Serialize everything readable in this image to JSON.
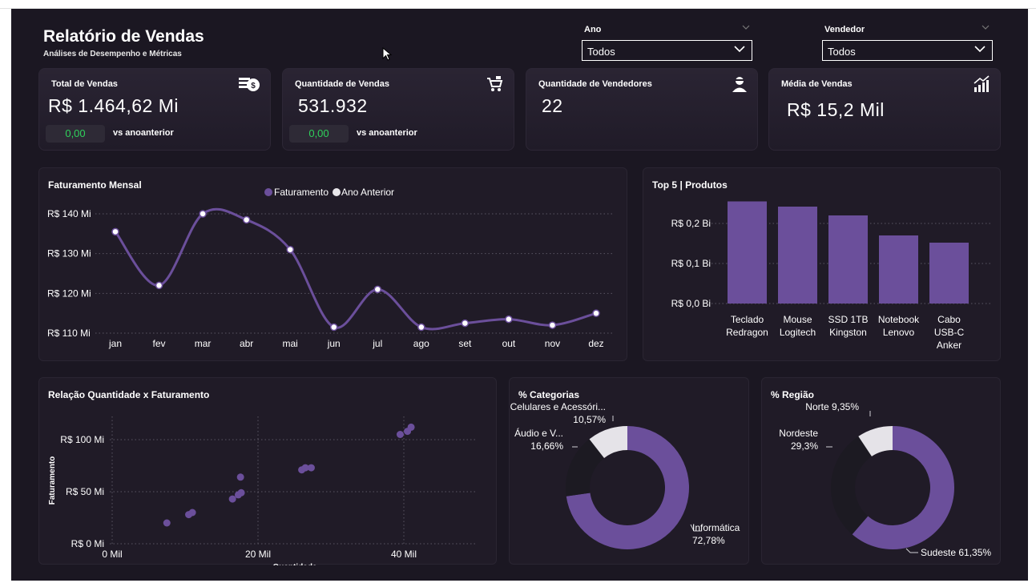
{
  "header": {
    "title": "Relatório de Vendas",
    "subtitle": "Análises de Desempenho e Métricas"
  },
  "filters": {
    "ano": {
      "label": "Ano",
      "value": "Todos"
    },
    "vendedor": {
      "label": "Vendedor",
      "value": "Todos"
    }
  },
  "kpis": [
    {
      "label": "Total de Vendas",
      "value": "R$ 1.464,62 Mi",
      "badge": "0,00",
      "vs": "vs anoanterior",
      "icon": "money-icon"
    },
    {
      "label": "Quantidade de Vendas",
      "value": "531.932",
      "badge": "0,00",
      "vs": "vs anoanterior",
      "icon": "cart-icon"
    },
    {
      "label": "Quantidade de Vendedores",
      "value": "22",
      "icon": "person-icon"
    },
    {
      "label": "Média de Vendas",
      "value": "R$ 15,2 Mil",
      "icon": "growth-chart-icon"
    }
  ],
  "colors": {
    "accent": "#6b4f9b",
    "background": "#1b1722",
    "panel": "#201b27",
    "positive": "#2fd15b",
    "light": "#e8e6ea"
  },
  "chart_data": [
    {
      "id": "faturamento-mensal",
      "type": "line",
      "title": "Faturamento  Mensal",
      "legend": [
        "Faturamento",
        "Ano Anterior"
      ],
      "categories": [
        "jan",
        "fev",
        "mar",
        "abr",
        "mai",
        "jun",
        "jul",
        "ago",
        "set",
        "out",
        "nov",
        "dez"
      ],
      "series": [
        {
          "name": "Faturamento",
          "values": [
            135.5,
            122,
            140,
            138.5,
            131,
            111.5,
            121,
            111.5,
            112.5,
            113.5,
            112,
            115
          ]
        }
      ],
      "ylim": [
        110,
        140
      ],
      "yticks": [
        110,
        120,
        130,
        140
      ],
      "ytick_labels": [
        "R$ 110 Mi",
        "R$ 120 Mi",
        "R$ 130 Mi",
        "R$ 140 Mi"
      ]
    },
    {
      "id": "top5-produtos",
      "type": "bar",
      "title": "Top 5 | Produtos",
      "categories": [
        [
          "Teclado",
          "Redragon"
        ],
        [
          "Mouse",
          "Logitech"
        ],
        [
          "SSD 1TB",
          "Kingston"
        ],
        [
          "Notebook",
          "Lenovo"
        ],
        [
          "Cabo",
          "USB-C",
          "Anker"
        ]
      ],
      "values": [
        0.255,
        0.242,
        0.22,
        0.17,
        0.152
      ],
      "ylim": [
        0,
        0.25
      ],
      "yticks": [
        0,
        0.1,
        0.2
      ],
      "ytick_labels": [
        "R$ 0,0 Bi",
        "R$ 0,1 Bi",
        "R$ 0,2 Bi"
      ]
    },
    {
      "id": "relacao-qtd-fat",
      "type": "scatter",
      "title": "Relação Quantidade x Faturamento",
      "xlabel": "Quantidade",
      "ylabel": "Faturamento",
      "points": [
        [
          7.5,
          20
        ],
        [
          10.5,
          28
        ],
        [
          11,
          30
        ],
        [
          16.5,
          43
        ],
        [
          17.3,
          47
        ],
        [
          17.7,
          49
        ],
        [
          17.6,
          64
        ],
        [
          26,
          71
        ],
        [
          26.5,
          73
        ],
        [
          27.3,
          73
        ],
        [
          39.5,
          105
        ],
        [
          40.5,
          108
        ],
        [
          41,
          112
        ]
      ],
      "xlim": [
        0,
        48
      ],
      "ylim": [
        0,
        118
      ],
      "xticks": [
        0,
        20,
        40
      ],
      "xtick_labels": [
        "0 Mil",
        "20 Mil",
        "40 Mil"
      ],
      "yticks": [
        0,
        50,
        100
      ],
      "ytick_labels": [
        "R$ 0 Mi",
        "R$ 50 Mi",
        "R$ 100 Mi"
      ]
    },
    {
      "id": "categorias",
      "type": "pie",
      "title": "% Categorias",
      "slices": [
        {
          "label": "Informática",
          "pct": "72,78%",
          "value": 72.78,
          "color": "#6b4f9b"
        },
        {
          "label": "Áudio e V...",
          "pct": "16,66%",
          "value": 16.66,
          "color": "#1c1a22"
        },
        {
          "label": "Celulares e Acessóri...",
          "pct": "10,57%",
          "value": 10.57,
          "color": "#e5e3e8"
        }
      ]
    },
    {
      "id": "regiao",
      "type": "pie",
      "title": "% Região",
      "slices": [
        {
          "label": "Sudeste",
          "pct": "61,35%",
          "value": 61.35,
          "color": "#6b4f9b"
        },
        {
          "label": "Nordeste",
          "pct": "29,3%",
          "value": 29.3,
          "color": "#1c1a22"
        },
        {
          "label": "Norte",
          "pct": "9,35%",
          "value": 9.35,
          "color": "#e5e3e8"
        }
      ]
    }
  ]
}
